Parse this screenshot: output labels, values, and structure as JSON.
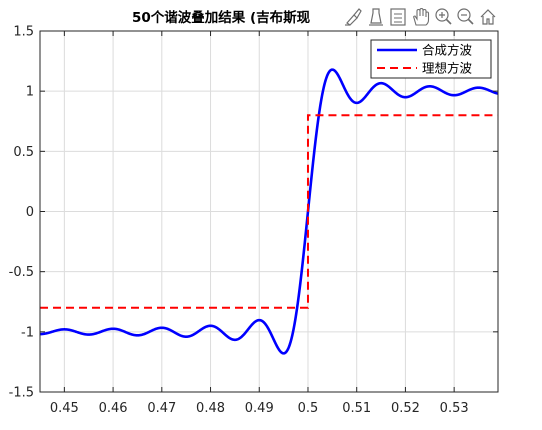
{
  "toolbar": {
    "icons": [
      "brush-icon",
      "data-tip-icon",
      "tooltip-icon",
      "pan-hand-icon",
      "zoom-in-icon",
      "zoom-out-icon",
      "home-icon"
    ]
  },
  "chart_data": {
    "type": "line",
    "title": "50个谐波叠加结果 (吉布斯现",
    "xlabel": "",
    "ylabel": "",
    "xlim": [
      0.445,
      0.539
    ],
    "ylim": [
      -1.5,
      1.5
    ],
    "x_ticks": [
      0.45,
      0.46,
      0.47,
      0.48,
      0.49,
      0.5,
      0.51,
      0.52,
      0.53
    ],
    "x_tick_labels": [
      "0.45",
      "0.46",
      "0.47",
      "0.48",
      "0.49",
      "0.5",
      "0.51",
      "0.52",
      "0.53"
    ],
    "y_ticks": [
      -1.5,
      -1,
      -0.5,
      0,
      0.5,
      1,
      1.5
    ],
    "y_tick_labels": [
      "-1.5",
      "-1",
      "-0.5",
      "0",
      "0.5",
      "1",
      "1.5"
    ],
    "grid": true,
    "legend_position": "top-right",
    "series": [
      {
        "name": "合成方波",
        "color": "#0000ff",
        "style": "solid",
        "harmonics": 50,
        "period": 1,
        "amplitude": 1
      },
      {
        "name": "理想方波",
        "color": "#ff0000",
        "style": "dashed",
        "x": [
          0.445,
          0.5,
          0.5,
          0.539
        ],
        "y": [
          -0.8,
          -0.8,
          0.8,
          0.8
        ]
      }
    ]
  }
}
